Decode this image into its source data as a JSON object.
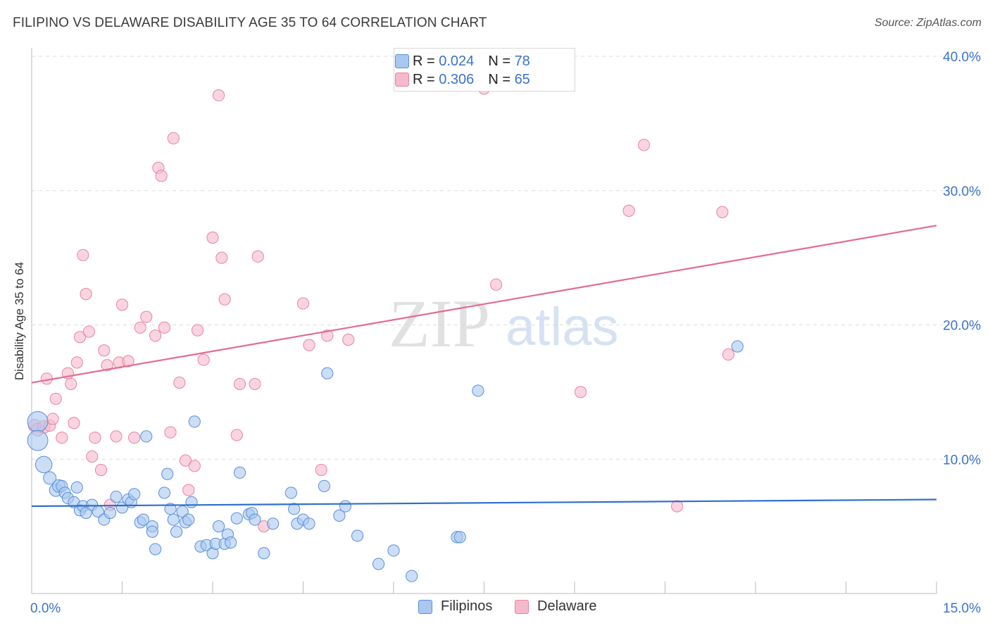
{
  "title": "FILIPINO VS DELAWARE DISABILITY AGE 35 TO 64 CORRELATION CHART",
  "source": "Source: ZipAtlas.com",
  "watermark": {
    "zip": "ZIP",
    "atlas": "atlas"
  },
  "legend": {
    "rows": [
      {
        "r_label": "R = ",
        "r_value": "0.024",
        "n_label": "N = ",
        "n_value": "78"
      },
      {
        "r_label": "R = ",
        "r_value": "0.306",
        "n_label": "N = ",
        "n_value": "65"
      }
    ]
  },
  "bottom_legend": [
    "Filipinos",
    "Delaware"
  ],
  "colors": {
    "blue_fill": "#a8c8f0",
    "blue_stroke": "#5a8fd8",
    "blue_line": "#2f6fcf",
    "pink_fill": "#f6b8cb",
    "pink_stroke": "#e6849f",
    "pink_line": "#e46a93",
    "axis_text": "#3a73c9",
    "grid": "#dcdcdc"
  },
  "chart_data": {
    "type": "scatter",
    "title": "FILIPINO VS DELAWARE DISABILITY AGE 35 TO 64 CORRELATION CHART",
    "xlabel": "",
    "ylabel": "Disability Age 35 to 64",
    "xlim": [
      0,
      15
    ],
    "ylim": [
      0,
      40
    ],
    "x_tick_labels": [
      "0.0%",
      "15.0%"
    ],
    "y_ticks": [
      10,
      20,
      30,
      40
    ],
    "y_tick_labels": [
      "10.0%",
      "20.0%",
      "30.0%",
      "40.0%"
    ],
    "series": [
      {
        "name": "Filipinos",
        "r": 0.024,
        "n": 78,
        "trend": {
          "x": [
            0,
            15
          ],
          "y": [
            6.5,
            7.0
          ]
        },
        "points": [
          [
            0.1,
            12.8,
            1.6
          ],
          [
            0.1,
            11.4,
            1.6
          ],
          [
            0.2,
            9.6,
            1.3
          ],
          [
            0.3,
            8.6,
            1.0
          ],
          [
            0.4,
            7.7,
            1.0
          ],
          [
            0.45,
            8.0,
            1.0
          ],
          [
            0.5,
            8.0,
            0.9
          ],
          [
            0.55,
            7.5,
            0.9
          ],
          [
            0.6,
            7.1,
            0.9
          ],
          [
            0.7,
            6.8,
            0.9
          ],
          [
            0.75,
            7.9,
            0.9
          ],
          [
            0.8,
            6.2,
            0.9
          ],
          [
            0.85,
            6.5,
            0.9
          ],
          [
            0.9,
            6.0,
            0.9
          ],
          [
            1.0,
            6.6,
            0.9
          ],
          [
            1.1,
            6.1,
            0.9
          ],
          [
            1.2,
            5.5,
            0.9
          ],
          [
            1.3,
            6.0,
            0.9
          ],
          [
            1.4,
            7.2,
            0.9
          ],
          [
            1.5,
            6.4,
            0.9
          ],
          [
            1.6,
            7.0,
            0.9
          ],
          [
            1.65,
            6.8,
            0.9
          ],
          [
            1.7,
            7.4,
            0.9
          ],
          [
            1.8,
            5.3,
            0.9
          ],
          [
            1.85,
            5.5,
            0.9
          ],
          [
            1.9,
            11.7,
            0.9
          ],
          [
            2.0,
            5.0,
            0.9
          ],
          [
            2.0,
            4.6,
            0.9
          ],
          [
            2.05,
            3.3,
            0.9
          ],
          [
            2.2,
            7.5,
            0.9
          ],
          [
            2.25,
            8.9,
            0.9
          ],
          [
            2.3,
            6.3,
            0.9
          ],
          [
            2.35,
            5.5,
            0.9
          ],
          [
            2.4,
            4.6,
            0.9
          ],
          [
            2.5,
            6.1,
            0.9
          ],
          [
            2.55,
            5.3,
            0.9
          ],
          [
            2.6,
            5.5,
            0.9
          ],
          [
            2.65,
            6.8,
            0.9
          ],
          [
            2.7,
            12.8,
            0.9
          ],
          [
            2.8,
            3.5,
            0.9
          ],
          [
            2.9,
            3.6,
            0.9
          ],
          [
            3.0,
            3.0,
            0.9
          ],
          [
            3.05,
            3.7,
            0.9
          ],
          [
            3.1,
            5.0,
            0.9
          ],
          [
            3.2,
            3.7,
            0.9
          ],
          [
            3.25,
            4.4,
            0.9
          ],
          [
            3.3,
            3.8,
            0.9
          ],
          [
            3.4,
            5.6,
            0.9
          ],
          [
            3.45,
            9.0,
            0.9
          ],
          [
            3.6,
            5.9,
            0.9
          ],
          [
            3.65,
            6.0,
            0.9
          ],
          [
            3.7,
            5.5,
            0.9
          ],
          [
            3.85,
            3.0,
            0.9
          ],
          [
            4.0,
            5.2,
            0.9
          ],
          [
            4.3,
            7.5,
            0.9
          ],
          [
            4.35,
            6.3,
            0.9
          ],
          [
            4.4,
            5.2,
            0.9
          ],
          [
            4.5,
            5.5,
            0.9
          ],
          [
            4.6,
            5.2,
            0.9
          ],
          [
            4.85,
            8.0,
            0.9
          ],
          [
            4.9,
            16.4,
            0.9
          ],
          [
            5.1,
            5.8,
            0.9
          ],
          [
            5.2,
            6.5,
            0.9
          ],
          [
            5.4,
            4.3,
            0.9
          ],
          [
            5.75,
            2.2,
            0.9
          ],
          [
            6.0,
            3.2,
            0.9
          ],
          [
            6.3,
            1.3,
            0.9
          ],
          [
            7.05,
            4.2,
            0.9
          ],
          [
            7.1,
            4.2,
            0.9
          ],
          [
            7.4,
            15.1,
            0.9
          ],
          [
            11.7,
            18.4,
            0.9
          ]
        ]
      },
      {
        "name": "Delaware",
        "r": 0.306,
        "n": 65,
        "trend": {
          "x": [
            0,
            15
          ],
          "y": [
            15.7,
            27.4
          ]
        },
        "points": [
          [
            0.05,
            12.5,
            1.0
          ],
          [
            0.1,
            12.2,
            1.0
          ],
          [
            0.2,
            12.4,
            1.0
          ],
          [
            0.25,
            16.0,
            0.9
          ],
          [
            0.3,
            12.5,
            0.9
          ],
          [
            0.35,
            13.0,
            0.9
          ],
          [
            0.4,
            14.5,
            0.9
          ],
          [
            0.5,
            11.6,
            0.9
          ],
          [
            0.6,
            16.4,
            0.9
          ],
          [
            0.65,
            15.6,
            0.9
          ],
          [
            0.7,
            12.7,
            0.9
          ],
          [
            0.75,
            17.2,
            0.9
          ],
          [
            0.8,
            19.1,
            0.9
          ],
          [
            0.85,
            25.2,
            0.9
          ],
          [
            0.9,
            22.3,
            0.9
          ],
          [
            0.95,
            19.5,
            0.9
          ],
          [
            1.0,
            10.2,
            0.9
          ],
          [
            1.05,
            11.6,
            0.9
          ],
          [
            1.15,
            9.2,
            0.9
          ],
          [
            1.2,
            18.1,
            0.9
          ],
          [
            1.25,
            17.0,
            0.9
          ],
          [
            1.3,
            6.6,
            0.9
          ],
          [
            1.4,
            11.7,
            0.9
          ],
          [
            1.45,
            17.2,
            0.9
          ],
          [
            1.5,
            21.5,
            0.9
          ],
          [
            1.6,
            17.3,
            0.9
          ],
          [
            1.7,
            11.6,
            0.9
          ],
          [
            1.8,
            19.8,
            0.9
          ],
          [
            1.9,
            20.6,
            0.9
          ],
          [
            2.05,
            19.2,
            0.9
          ],
          [
            2.1,
            31.7,
            0.9
          ],
          [
            2.15,
            31.1,
            0.9
          ],
          [
            2.2,
            19.8,
            0.9
          ],
          [
            2.3,
            12.0,
            0.9
          ],
          [
            2.35,
            33.9,
            0.9
          ],
          [
            2.45,
            15.7,
            0.9
          ],
          [
            2.55,
            9.9,
            0.9
          ],
          [
            2.6,
            7.7,
            0.9
          ],
          [
            2.7,
            9.5,
            0.9
          ],
          [
            2.75,
            19.6,
            0.9
          ],
          [
            2.85,
            17.4,
            0.9
          ],
          [
            3.0,
            26.5,
            0.9
          ],
          [
            3.1,
            37.1,
            0.9
          ],
          [
            3.15,
            25.0,
            0.9
          ],
          [
            3.2,
            21.9,
            0.9
          ],
          [
            3.4,
            11.8,
            0.9
          ],
          [
            3.45,
            15.6,
            0.9
          ],
          [
            3.7,
            15.6,
            0.9
          ],
          [
            3.75,
            25.1,
            0.9
          ],
          [
            3.85,
            5.0,
            0.9
          ],
          [
            4.5,
            21.6,
            0.9
          ],
          [
            4.6,
            18.5,
            0.9
          ],
          [
            4.8,
            9.2,
            0.9
          ],
          [
            4.9,
            19.2,
            0.9
          ],
          [
            5.25,
            18.9,
            0.9
          ],
          [
            7.5,
            37.6,
            0.9
          ],
          [
            7.7,
            23.0,
            0.9
          ],
          [
            9.1,
            15.0,
            0.9
          ],
          [
            9.9,
            28.5,
            0.9
          ],
          [
            10.15,
            33.4,
            0.9
          ],
          [
            10.7,
            6.5,
            0.9
          ],
          [
            11.45,
            28.4,
            0.9
          ],
          [
            11.55,
            17.8,
            0.9
          ]
        ]
      }
    ]
  }
}
